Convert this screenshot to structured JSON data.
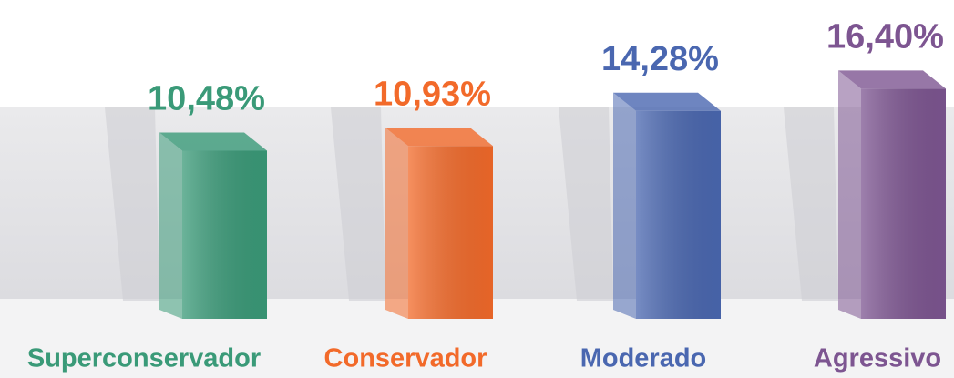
{
  "chart_data": {
    "type": "bar3d",
    "categories": [
      "Superconservador",
      "Conservador",
      "Moderado",
      "Agressivo"
    ],
    "values": [
      10.48,
      10.93,
      14.28,
      16.4
    ],
    "value_labels": [
      "10,48%",
      "10,93%",
      "14,28%",
      "16,40%"
    ],
    "colors": [
      "#3a9a78",
      "#f26a2a",
      "#4a67b0",
      "#7d5591"
    ]
  }
}
